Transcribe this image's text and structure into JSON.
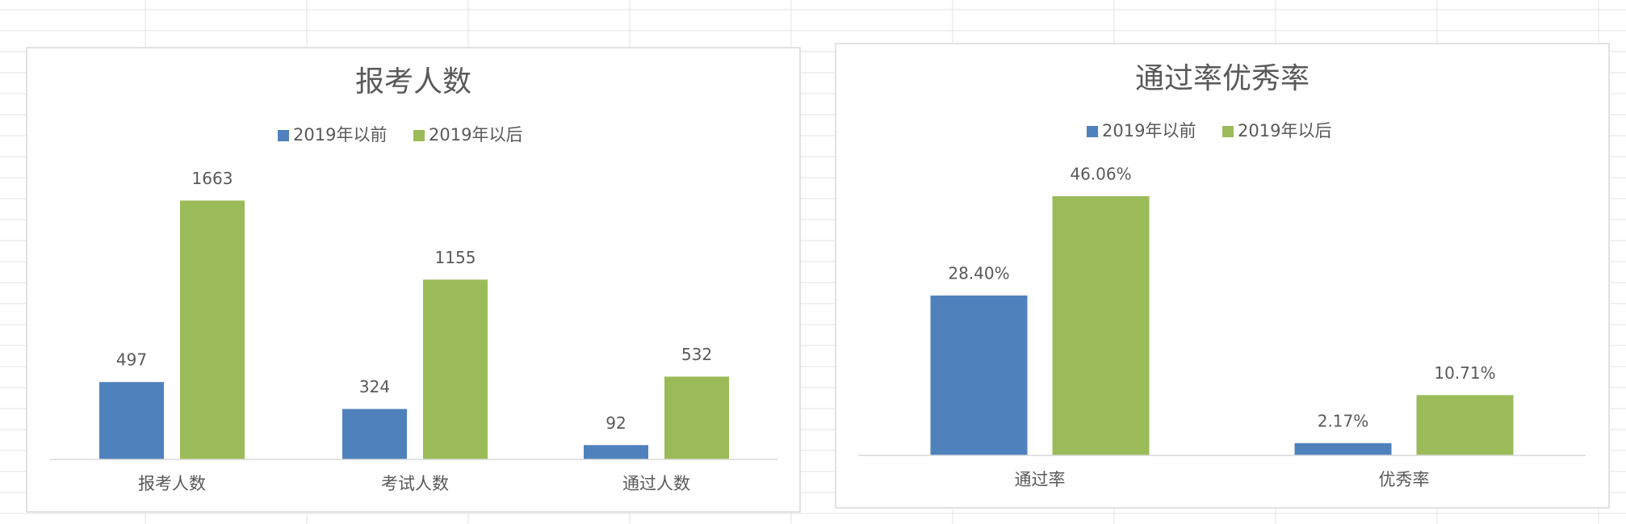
{
  "chart_data": [
    {
      "type": "bar",
      "title": "报考人数",
      "categories": [
        "报考人数",
        "考试人数",
        "通过人数"
      ],
      "series": [
        {
          "name": "2019年以前",
          "color": "#4f81bd",
          "values": [
            497,
            324,
            92
          ]
        },
        {
          "name": "2019年以后",
          "color": "#9bbb59",
          "values": [
            1663,
            1155,
            532
          ]
        }
      ],
      "ylim": [
        0,
        1800
      ],
      "legend": "top"
    },
    {
      "type": "bar",
      "title": "通过率优秀率",
      "categories": [
        "通过率",
        "优秀率"
      ],
      "series": [
        {
          "name": "2019年以前",
          "color": "#4f81bd",
          "values": [
            28.4,
            2.17
          ],
          "value_labels": [
            "28.40%",
            "2.17%"
          ]
        },
        {
          "name": "2019年以后",
          "color": "#9bbb59",
          "values": [
            46.06,
            10.71
          ],
          "value_labels": [
            "46.06%",
            "10.71%"
          ]
        }
      ],
      "ylim": [
        0,
        50
      ],
      "legend": "top"
    }
  ]
}
